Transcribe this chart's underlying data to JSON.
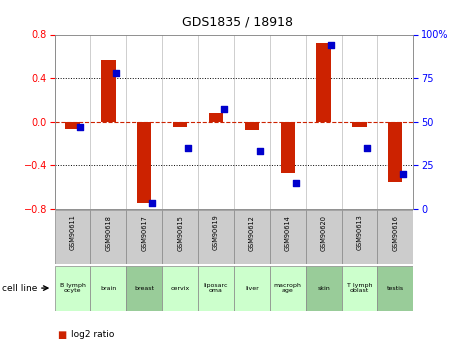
{
  "title": "GDS1835 / 18918",
  "samples": [
    "GSM90611",
    "GSM90618",
    "GSM90617",
    "GSM90615",
    "GSM90619",
    "GSM90612",
    "GSM90614",
    "GSM90620",
    "GSM90613",
    "GSM90616"
  ],
  "cell_line_labels": [
    "B lymph\nocyte",
    "brain",
    "breast",
    "cervix",
    "liposarc\noma",
    "liver",
    "macroph\nage",
    "skin",
    "T lymph\noblast",
    "testis"
  ],
  "log2_ratio": [
    -0.07,
    0.57,
    -0.75,
    -0.05,
    0.08,
    -0.08,
    -0.47,
    0.72,
    -0.05,
    -0.55
  ],
  "percentile_rank": [
    47,
    78,
    3,
    35,
    57,
    33,
    15,
    94,
    35,
    20
  ],
  "ylim": [
    -0.8,
    0.8
  ],
  "yticks_left": [
    -0.8,
    -0.4,
    0.0,
    0.4,
    0.8
  ],
  "yticks_right": [
    0,
    25,
    50,
    75,
    100
  ],
  "bar_color": "#cc2200",
  "dot_color": "#0000cc",
  "sample_bg": "#cccccc",
  "cell_bg": [
    "#ccffcc",
    "#ccffcc",
    "#99cc99",
    "#ccffcc",
    "#ccffcc",
    "#ccffcc",
    "#ccffcc",
    "#99cc99",
    "#ccffcc",
    "#99cc99"
  ],
  "bar_width": 0.4,
  "dot_size": 25
}
